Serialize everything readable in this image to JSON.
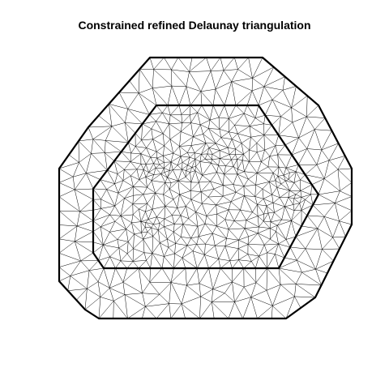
{
  "title": "Constrained refined Delaunay triangulation",
  "mesh": {
    "edge_color": "#000000",
    "boundary_color": "#000000",
    "background": "#ffffff"
  }
}
